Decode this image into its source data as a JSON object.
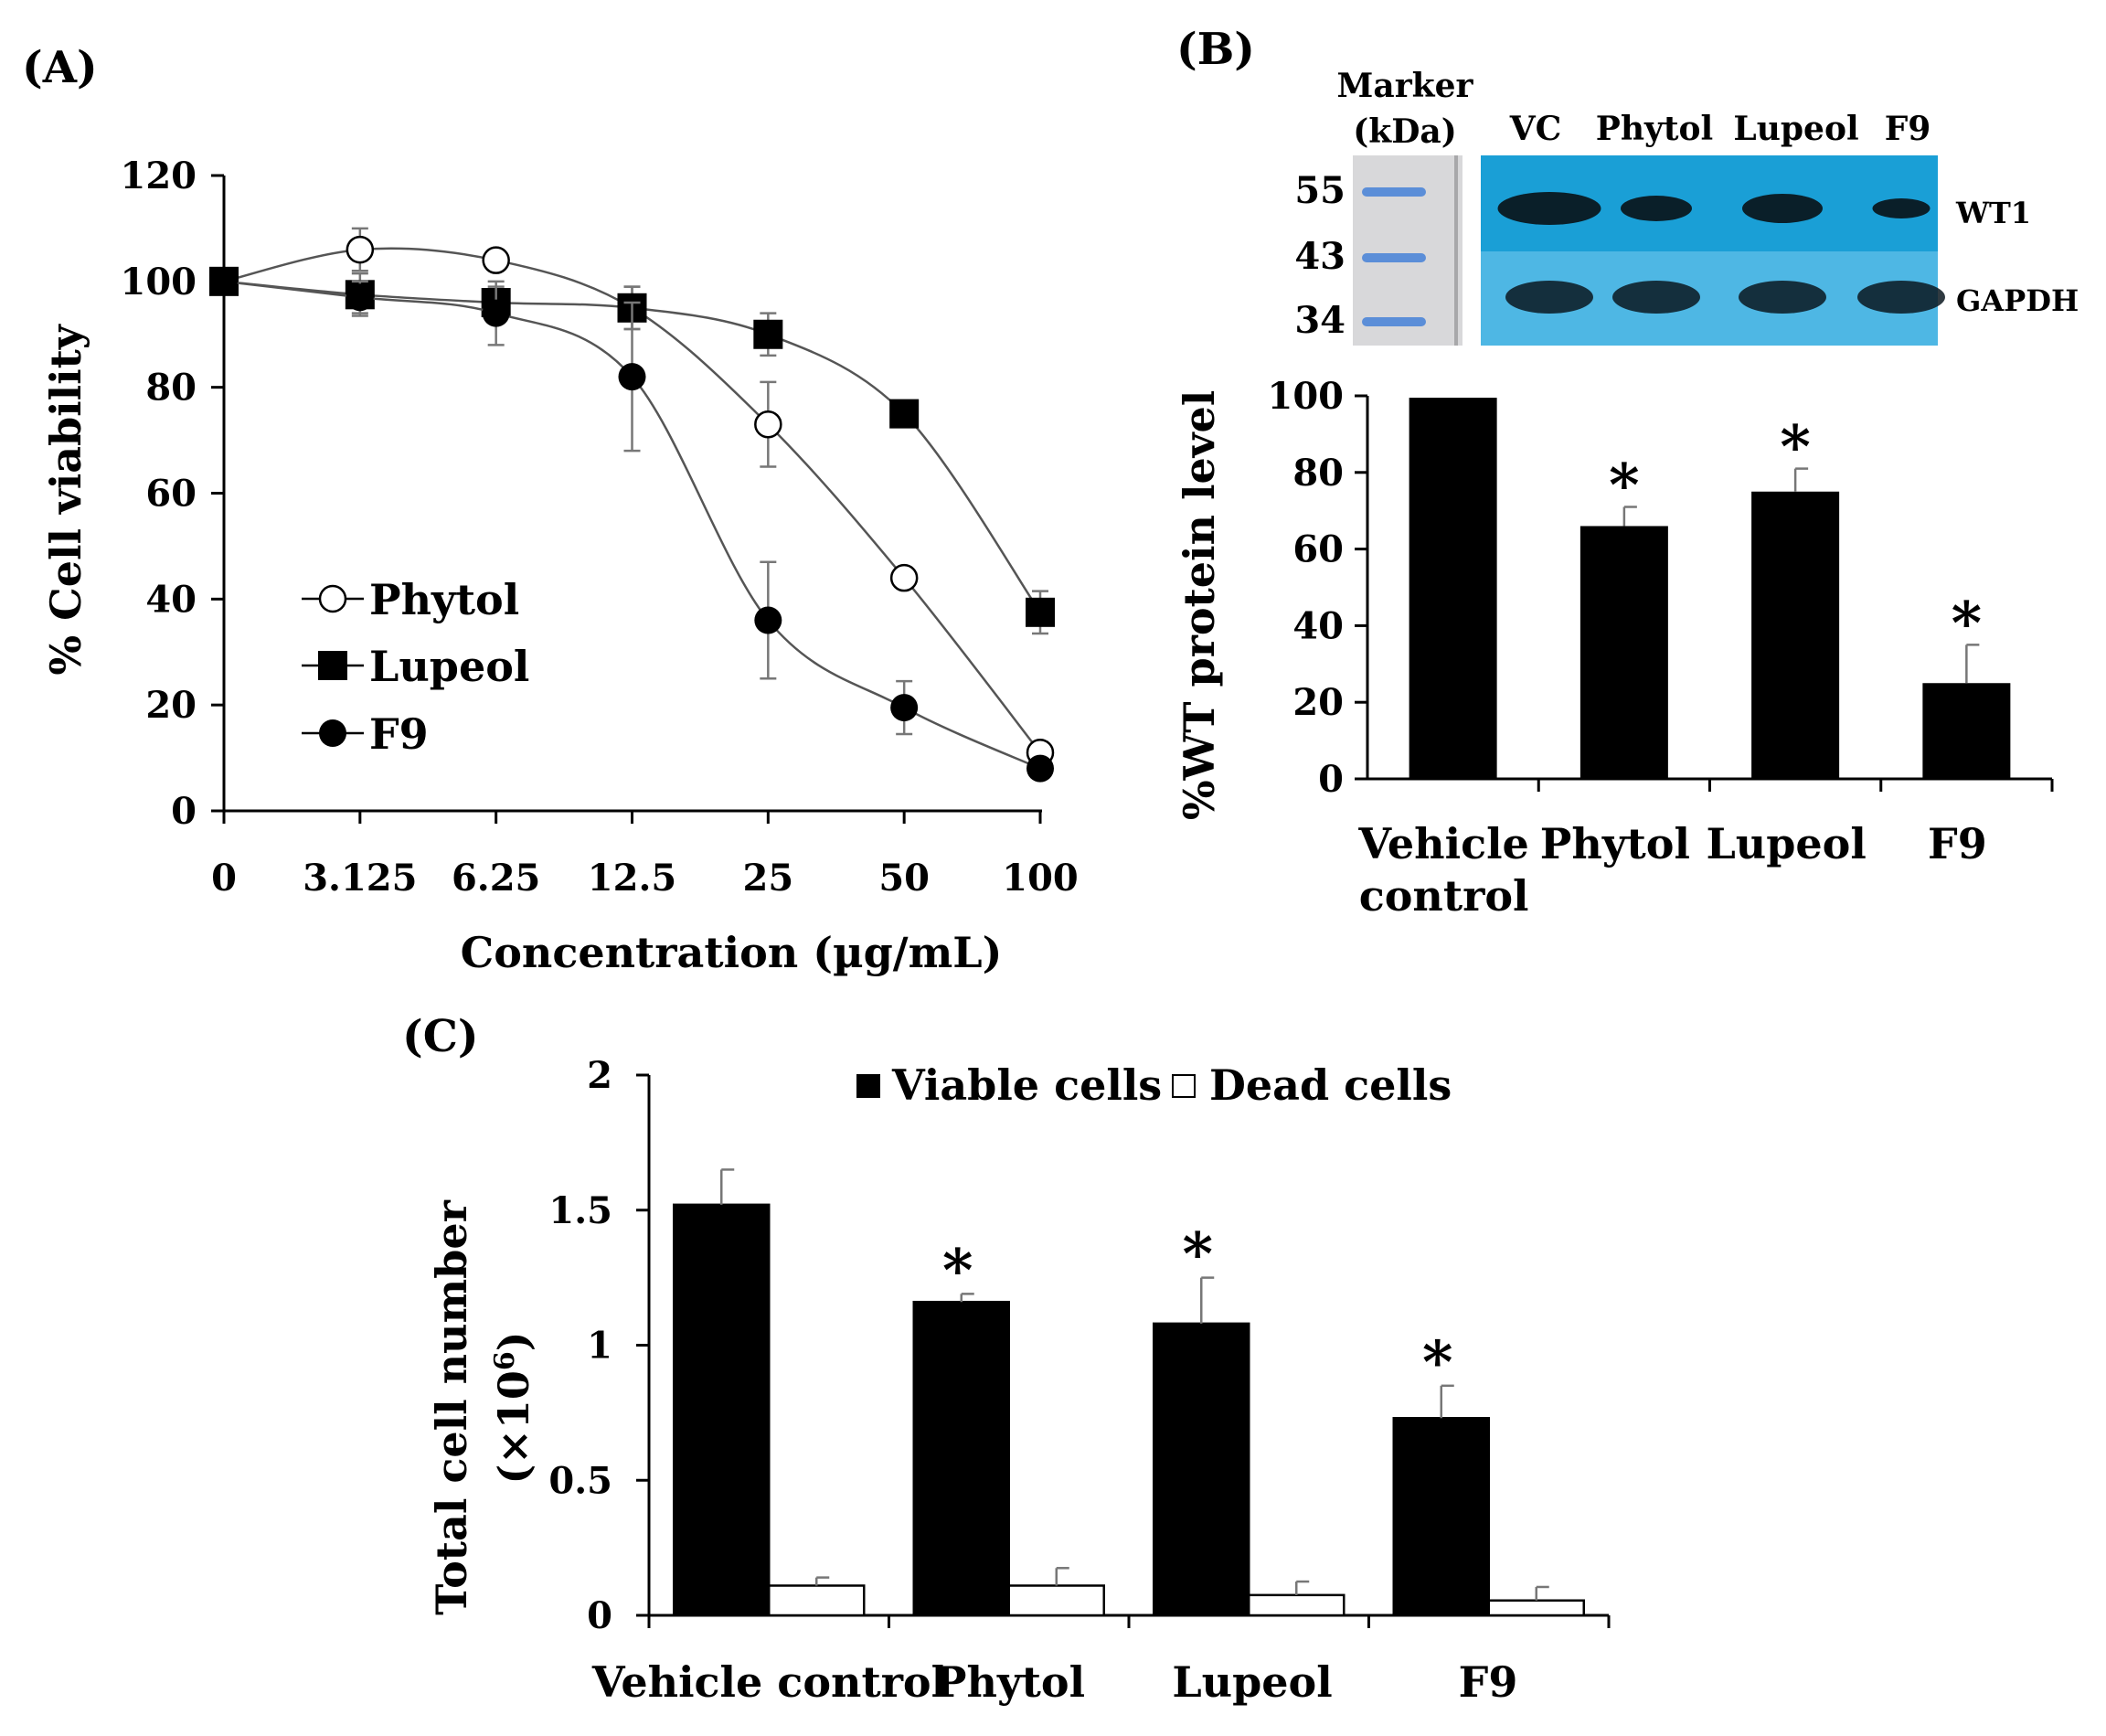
{
  "panels": {
    "a_label": "(A)",
    "b_label": "(B)",
    "c_label": "(C)"
  },
  "blot": {
    "marker_title_1": "Marker",
    "marker_title_2": "(kDa)",
    "marker_sizes": [
      "55",
      "43",
      "34"
    ],
    "lanes": [
      "VC",
      "Phytol",
      "Lupeol",
      "F9"
    ],
    "band_top": "WT1",
    "band_bottom": "GAPDH"
  },
  "colors": {
    "blot_top": "#1a9fd6",
    "blot_bottom": "#4eb7e4",
    "blot_band": "#0a1820",
    "marker_bg": "#d8d8da",
    "marker_band": "#5b8ed8"
  },
  "chart_data": [
    {
      "type": "line",
      "panel": "A",
      "title": "",
      "xlabel": "Concentration (µg/mL)",
      "ylabel": "% Cell viability",
      "categories": [
        "0",
        "3.125",
        "6.25",
        "12.5",
        "25",
        "50",
        "100"
      ],
      "ylim": [
        0,
        120
      ],
      "yticks": [
        0,
        20,
        40,
        60,
        80,
        100,
        120
      ],
      "legend_position": "center-left",
      "series": [
        {
          "name": "Phytol",
          "marker": "open-circle",
          "values": [
            100,
            106,
            104,
            95,
            73,
            44,
            11
          ],
          "errors": [
            0,
            4,
            0,
            4,
            8,
            0,
            2
          ]
        },
        {
          "name": "Lupeol",
          "marker": "filled-square",
          "values": [
            100,
            97.5,
            96,
            95,
            90,
            75,
            37.5
          ],
          "errors": [
            0,
            4,
            3,
            4,
            4,
            0,
            4
          ]
        },
        {
          "name": "F9",
          "marker": "filled-circle",
          "values": [
            100,
            97,
            94,
            82,
            36,
            19.5,
            8
          ],
          "errors": [
            0,
            3,
            6,
            14,
            11,
            5,
            0
          ]
        }
      ]
    },
    {
      "type": "bar",
      "panel": "B",
      "title": "",
      "xlabel": "",
      "ylabel": "%WT protein level",
      "categories": [
        "Vehicle control",
        "Phytol",
        "Lupeol",
        "F9"
      ],
      "category_lines": [
        [
          "Vehicle",
          "control"
        ],
        [
          "Phytol"
        ],
        [
          "Lupeol"
        ],
        [
          "F9"
        ]
      ],
      "values": [
        99.5,
        66,
        75,
        25
      ],
      "errors": [
        0,
        5,
        6,
        10
      ],
      "significant": [
        "",
        "*",
        "*",
        "*"
      ],
      "ylim": [
        0,
        100
      ],
      "yticks": [
        0,
        20,
        40,
        60,
        80,
        100
      ]
    },
    {
      "type": "bar",
      "panel": "C",
      "title": "",
      "xlabel": "",
      "ylabel": "Total cell number",
      "ylabel2": "(×10",
      "ylabel2_sup": "6",
      "ylabel2_end": ")",
      "categories": [
        "Vehicle control",
        "Phytol",
        "Lupeol",
        "F9"
      ],
      "ylim": [
        0,
        2
      ],
      "yticks": [
        0,
        0.5,
        1,
        1.5,
        2
      ],
      "legend_position": "top-center",
      "series": [
        {
          "name": "Viable cells",
          "fill": "#000000",
          "values": [
            1.52,
            1.16,
            1.08,
            0.73
          ],
          "errors": [
            0.13,
            0.03,
            0.17,
            0.12
          ],
          "significant": [
            "",
            "*",
            "*",
            "*"
          ]
        },
        {
          "name": "Dead cells",
          "fill": "#ffffff",
          "values": [
            0.11,
            0.11,
            0.075,
            0.055
          ],
          "errors": [
            0.03,
            0.065,
            0.05,
            0.05
          ]
        }
      ]
    }
  ]
}
